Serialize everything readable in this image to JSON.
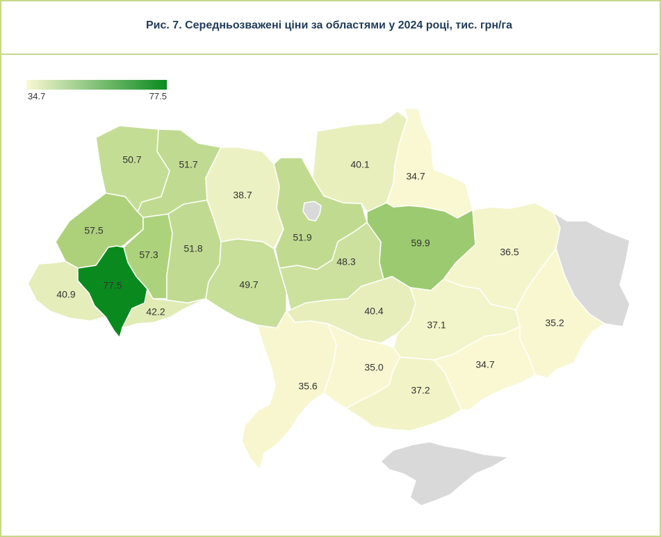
{
  "title": "Рис. 7. Середньозважені ціни за областями у 2024 році, тис. грн/га",
  "legend": {
    "min_label": "34.7",
    "max_label": "77.5",
    "min": 34.7,
    "max": 77.5,
    "color_low": "#faf8d2",
    "color_high": "#0a8a1e"
  },
  "no_data_color": "#d9d9d9",
  "regions": [
    {
      "id": "volyn",
      "label": "50.7",
      "value": 50.7
    },
    {
      "id": "rivne",
      "label": "51.7",
      "value": 51.7
    },
    {
      "id": "zhytomyr",
      "label": "38.7",
      "value": 38.7
    },
    {
      "id": "kyiv",
      "label": "51.9",
      "value": 51.9
    },
    {
      "id": "chernihiv",
      "label": "40.1",
      "value": 40.1
    },
    {
      "id": "sumy",
      "label": "34.7",
      "value": 34.7
    },
    {
      "id": "lviv",
      "label": "57.5",
      "value": 57.5
    },
    {
      "id": "ternopil",
      "label": "57.3",
      "value": 57.3
    },
    {
      "id": "khmelnytskyi",
      "label": "51.8",
      "value": 51.8
    },
    {
      "id": "vinnytsia",
      "label": "49.7",
      "value": 49.7
    },
    {
      "id": "cherkasy",
      "label": "48.3",
      "value": 48.3
    },
    {
      "id": "poltava",
      "label": "59.9",
      "value": 59.9
    },
    {
      "id": "kharkiv",
      "label": "36.5",
      "value": 36.5
    },
    {
      "id": "zakarpattia",
      "label": "40.9",
      "value": 40.9
    },
    {
      "id": "ivano-frankivsk",
      "label": "77.5",
      "value": 77.5
    },
    {
      "id": "chernivtsi",
      "label": "42.2",
      "value": 42.2
    },
    {
      "id": "kirovohrad",
      "label": "40.4",
      "value": 40.4
    },
    {
      "id": "dnipropetrovsk",
      "label": "37.1",
      "value": 37.1
    },
    {
      "id": "donetsk",
      "label": "35.2",
      "value": 35.2
    },
    {
      "id": "odesa",
      "label": "35.6",
      "value": 35.6
    },
    {
      "id": "mykolaiv",
      "label": "35.0",
      "value": 35.0
    },
    {
      "id": "zaporizhzhia",
      "label": "34.7",
      "value": 34.7
    },
    {
      "id": "kherson",
      "label": "37.2",
      "value": 37.2
    },
    {
      "id": "kyiv-city",
      "label": "",
      "value": null
    },
    {
      "id": "luhansk",
      "label": "",
      "value": null
    },
    {
      "id": "crimea",
      "label": "",
      "value": null
    }
  ]
}
